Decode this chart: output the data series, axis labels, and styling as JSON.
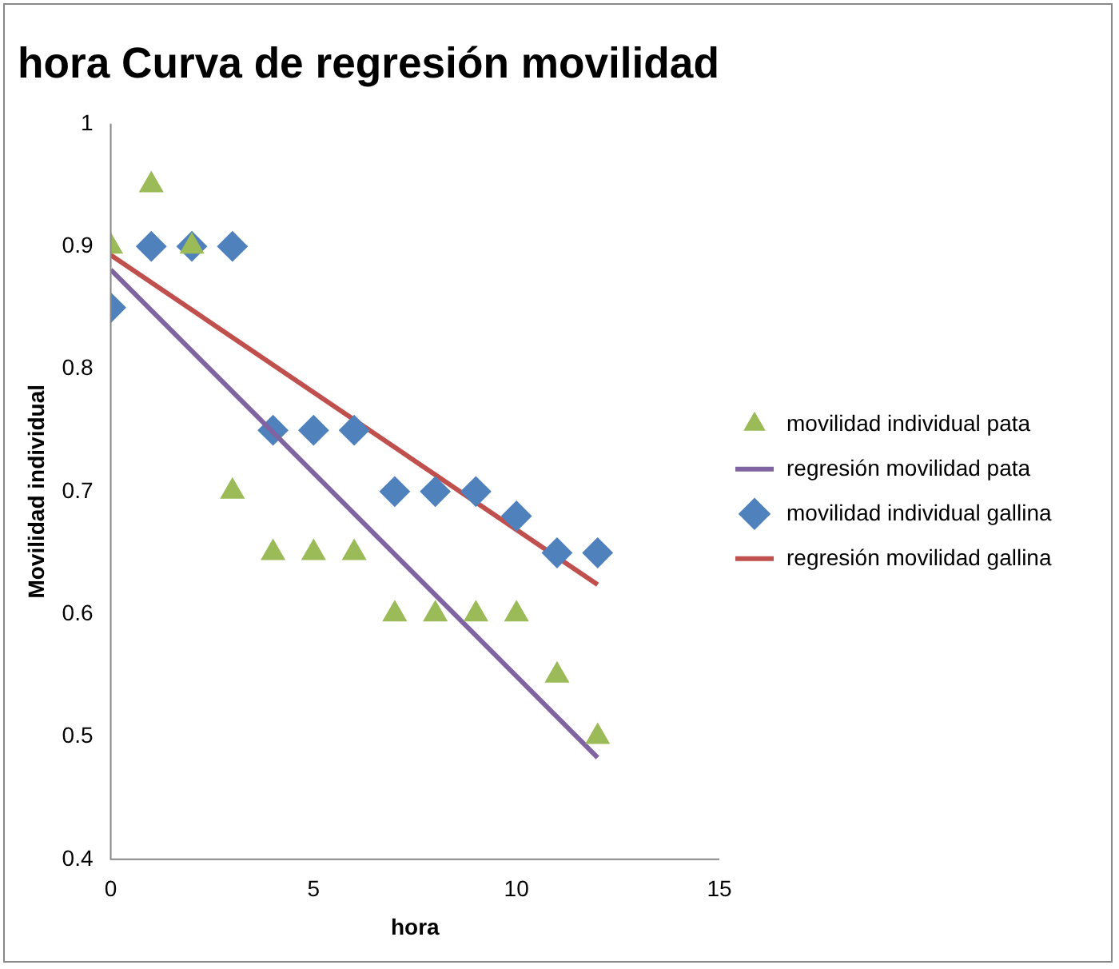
{
  "chart_data": {
    "type": "scatter",
    "title": "hora Curva de regresión movilidad",
    "xlabel": "hora",
    "ylabel": "Movilidad individual",
    "xlim": [
      0,
      15
    ],
    "xticks": [
      0,
      5,
      10,
      15
    ],
    "ylim": [
      0.4,
      1
    ],
    "yticks": [
      0.4,
      0.5,
      0.6,
      0.7,
      0.8,
      0.9,
      1
    ],
    "grid": false,
    "legend": "right",
    "series": [
      {
        "name": "movilidad individual pata",
        "type": "scatter",
        "marker": "triangle",
        "color": "#9bbb59",
        "x": [
          0,
          1,
          2,
          3,
          4,
          5,
          6,
          7,
          8,
          9,
          10,
          11,
          12
        ],
        "values": [
          0.9,
          0.95,
          0.9,
          0.7,
          0.65,
          0.65,
          0.65,
          0.6,
          0.6,
          0.6,
          0.6,
          0.55,
          0.5
        ]
      },
      {
        "name": "regresión movilidad pata",
        "type": "line",
        "marker": "none",
        "color": "#8064a2",
        "x": [
          0,
          12
        ],
        "values": [
          0.881,
          0.483
        ]
      },
      {
        "name": "movilidad individual gallina",
        "type": "scatter",
        "marker": "diamond",
        "color": "#4f81bd",
        "x": [
          0,
          1,
          2,
          3,
          4,
          5,
          6,
          7,
          8,
          9,
          10,
          11,
          12
        ],
        "values": [
          0.85,
          0.9,
          0.9,
          0.9,
          0.75,
          0.75,
          0.75,
          0.7,
          0.7,
          0.7,
          0.68,
          0.65,
          0.65
        ]
      },
      {
        "name": "regresión movilidad gallina",
        "type": "line",
        "marker": "none",
        "color": "#c0504d",
        "x": [
          0,
          12
        ],
        "values": [
          0.893,
          0.624
        ]
      }
    ]
  }
}
